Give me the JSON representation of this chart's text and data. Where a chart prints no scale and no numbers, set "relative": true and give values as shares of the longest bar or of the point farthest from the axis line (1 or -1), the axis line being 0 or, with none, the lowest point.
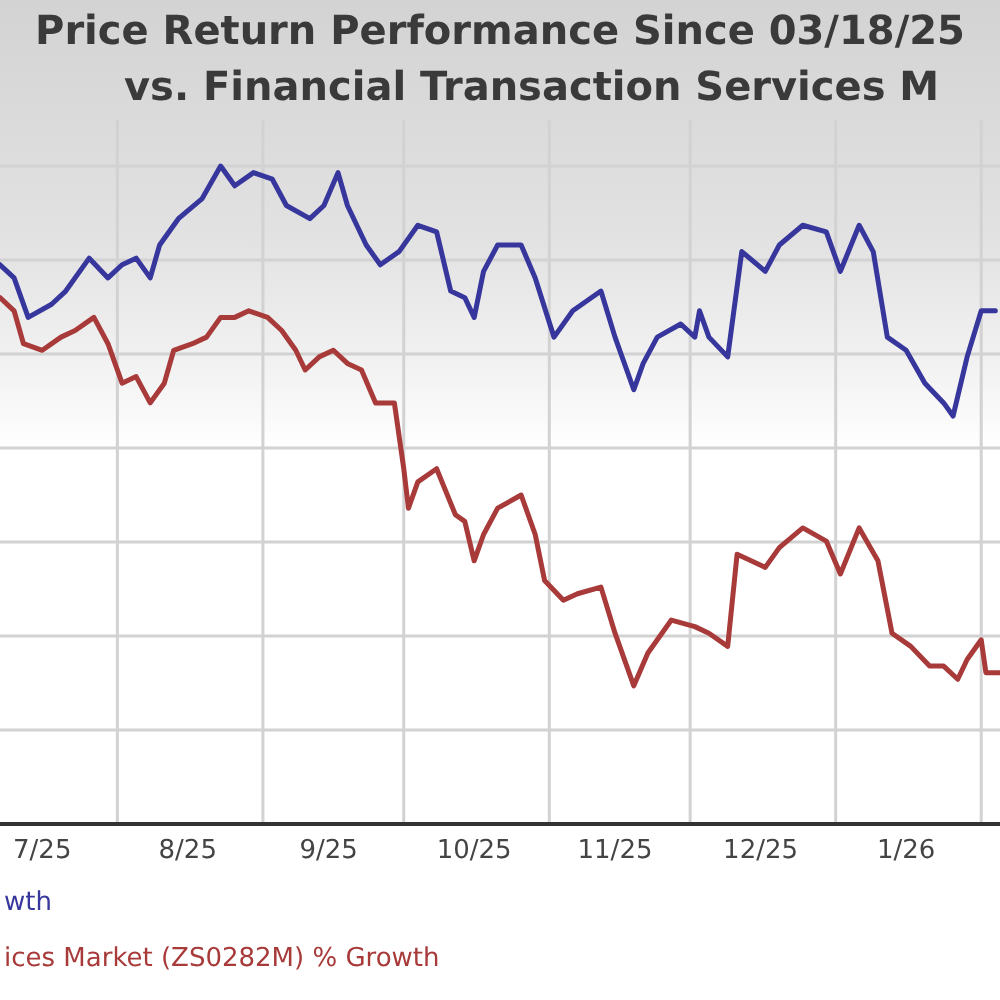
{
  "chart_data": {
    "type": "line",
    "title": "Price Return Performance Since 03/18/25",
    "subtitle": "vs. Financial Transaction Services M",
    "relative": true,
    "xlim": [
      "2025-07-07",
      "2026-02-05"
    ],
    "xticks": [
      {
        "value": "2025-07-16",
        "label": "7/25"
      },
      {
        "value": "2025-08-01",
        "label": null
      },
      {
        "value": "2025-08-16",
        "label": "8/25"
      },
      {
        "value": "2025-09-01",
        "label": null
      },
      {
        "value": "2025-09-15",
        "label": "9/25"
      },
      {
        "value": "2025-10-01",
        "label": null
      },
      {
        "value": "2025-10-16",
        "label": "10/25"
      },
      {
        "value": "2025-11-01",
        "label": null
      },
      {
        "value": "2025-11-15",
        "label": "11/25"
      },
      {
        "value": "2025-12-01",
        "label": null
      },
      {
        "value": "2025-12-16",
        "label": "12/25"
      },
      {
        "value": "2026-01-01",
        "label": null
      },
      {
        "value": "2026-01-16",
        "label": "1/26"
      },
      {
        "value": "2026-02-01",
        "label": null
      }
    ],
    "grid": true,
    "legend": "bottom left",
    "series": [
      {
        "name": "wth",
        "color": "#36369c",
        "x": [
          "2025-07-07",
          "2025-07-10",
          "2025-07-13",
          "2025-07-18",
          "2025-07-21",
          "2025-07-26",
          "2025-07-30",
          "2025-08-02",
          "2025-08-05",
          "2025-08-08",
          "2025-08-10",
          "2025-08-14",
          "2025-08-19",
          "2025-08-23",
          "2025-08-26",
          "2025-08-30",
          "2025-09-03",
          "2025-09-06",
          "2025-09-11",
          "2025-09-14",
          "2025-09-17",
          "2025-09-19",
          "2025-09-23",
          "2025-09-26",
          "2025-09-30",
          "2025-10-04",
          "2025-10-08",
          "2025-10-11",
          "2025-10-14",
          "2025-10-16",
          "2025-10-18",
          "2025-10-21",
          "2025-10-26",
          "2025-10-29",
          "2025-11-02",
          "2025-11-06",
          "2025-11-12",
          "2025-11-15",
          "2025-11-19",
          "2025-11-21",
          "2025-11-24",
          "2025-11-29",
          "2025-12-02",
          "2025-12-03",
          "2025-12-05",
          "2025-12-09",
          "2025-12-12",
          "2025-12-17",
          "2025-12-20",
          "2025-12-25",
          "2025-12-30",
          "2026-01-02",
          "2026-01-06",
          "2026-01-09",
          "2026-01-12",
          "2026-01-16",
          "2026-01-20",
          "2026-01-24",
          "2026-01-26",
          "2026-01-29",
          "2026-02-01",
          "2026-02-04"
        ],
        "values": [
          0.85,
          0.83,
          0.77,
          0.79,
          0.81,
          0.86,
          0.83,
          0.85,
          0.86,
          0.83,
          0.88,
          0.92,
          0.95,
          1.0,
          0.97,
          0.99,
          0.98,
          0.94,
          0.92,
          0.94,
          0.99,
          0.94,
          0.88,
          0.85,
          0.87,
          0.91,
          0.9,
          0.81,
          0.8,
          0.77,
          0.84,
          0.88,
          0.88,
          0.83,
          0.74,
          0.78,
          0.81,
          0.74,
          0.66,
          0.7,
          0.74,
          0.76,
          0.74,
          0.78,
          0.74,
          0.71,
          0.87,
          0.84,
          0.88,
          0.91,
          0.9,
          0.84,
          0.91,
          0.87,
          0.74,
          0.72,
          0.67,
          0.64,
          0.62,
          0.71,
          0.78,
          0.78
        ]
      },
      {
        "name": "ices Market (ZS0282M) % Growth",
        "color": "#a83a3a",
        "x": [
          "2025-07-07",
          "2025-07-10",
          "2025-07-12",
          "2025-07-16",
          "2025-07-20",
          "2025-07-23",
          "2025-07-27",
          "2025-07-30",
          "2025-08-02",
          "2025-08-05",
          "2025-08-08",
          "2025-08-11",
          "2025-08-13",
          "2025-08-17",
          "2025-08-20",
          "2025-08-23",
          "2025-08-26",
          "2025-08-29",
          "2025-09-02",
          "2025-09-05",
          "2025-09-08",
          "2025-09-10",
          "2025-09-13",
          "2025-09-16",
          "2025-09-19",
          "2025-09-22",
          "2025-09-25",
          "2025-09-29",
          "2025-10-01",
          "2025-10-02",
          "2025-10-04",
          "2025-10-08",
          "2025-10-12",
          "2025-10-14",
          "2025-10-16",
          "2025-10-18",
          "2025-10-21",
          "2025-10-26",
          "2025-10-29",
          "2025-10-31",
          "2025-11-04",
          "2025-11-07",
          "2025-11-12",
          "2025-11-15",
          "2025-11-19",
          "2025-11-22",
          "2025-11-27",
          "2025-12-02",
          "2025-12-05",
          "2025-12-09",
          "2025-12-11",
          "2025-12-17",
          "2025-12-20",
          "2025-12-25",
          "2025-12-30",
          "2026-01-02",
          "2026-01-06",
          "2026-01-10",
          "2026-01-13",
          "2026-01-17",
          "2026-01-21",
          "2026-01-24",
          "2026-01-27",
          "2026-01-29",
          "2026-02-01",
          "2026-02-02",
          "2026-02-05"
        ],
        "values": [
          0.8,
          0.78,
          0.73,
          0.72,
          0.74,
          0.75,
          0.77,
          0.73,
          0.67,
          0.68,
          0.64,
          0.67,
          0.72,
          0.73,
          0.74,
          0.77,
          0.77,
          0.78,
          0.77,
          0.75,
          0.72,
          0.69,
          0.71,
          0.72,
          0.7,
          0.69,
          0.64,
          0.64,
          0.54,
          0.48,
          0.52,
          0.54,
          0.47,
          0.46,
          0.4,
          0.44,
          0.48,
          0.5,
          0.44,
          0.37,
          0.34,
          0.35,
          0.36,
          0.29,
          0.21,
          0.26,
          0.31,
          0.3,
          0.29,
          0.27,
          0.41,
          0.39,
          0.42,
          0.45,
          0.43,
          0.38,
          0.45,
          0.4,
          0.29,
          0.27,
          0.24,
          0.24,
          0.22,
          0.25,
          0.28,
          0.23,
          0.23
        ]
      }
    ]
  }
}
